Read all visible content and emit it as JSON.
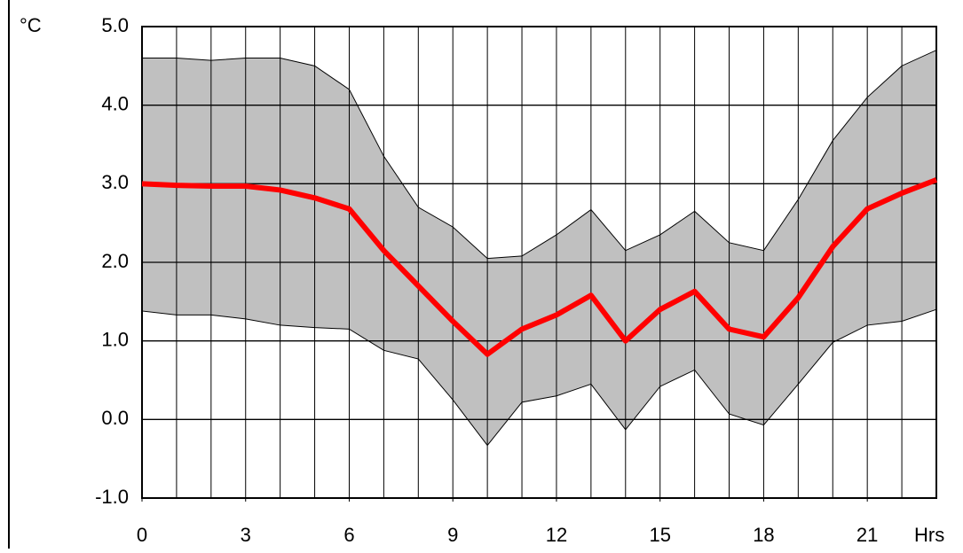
{
  "chart_data": {
    "type": "line",
    "y_label": "°C",
    "x_label": "Hrs",
    "x": [
      0,
      1,
      2,
      3,
      4,
      5,
      6,
      7,
      8,
      9,
      10,
      11,
      12,
      13,
      14,
      15,
      16,
      17,
      18,
      19,
      20,
      21,
      22,
      23
    ],
    "series": [
      {
        "color": "#ff0000",
        "values": [
          3.0,
          2.98,
          2.97,
          2.97,
          2.92,
          2.82,
          2.68,
          2.15,
          1.7,
          1.25,
          0.83,
          1.15,
          1.33,
          1.58,
          1.0,
          1.4,
          1.63,
          1.15,
          1.05,
          1.55,
          2.2,
          2.68,
          2.88,
          3.05
        ]
      }
    ],
    "band": {
      "color": "#c0c0c0",
      "upper": [
        4.6,
        4.6,
        4.57,
        4.6,
        4.6,
        4.5,
        4.2,
        3.35,
        2.7,
        2.45,
        2.05,
        2.08,
        2.35,
        2.67,
        2.15,
        2.35,
        2.65,
        2.25,
        2.15,
        2.8,
        3.55,
        4.1,
        4.5,
        4.7
      ],
      "lower": [
        1.38,
        1.33,
        1.33,
        1.28,
        1.2,
        1.17,
        1.15,
        0.88,
        0.77,
        0.25,
        -0.33,
        0.22,
        0.3,
        0.45,
        -0.13,
        0.42,
        0.63,
        0.07,
        -0.07,
        0.45,
        0.98,
        1.2,
        1.25,
        1.4
      ]
    },
    "xlim": [
      0,
      23
    ],
    "xticks": [
      0,
      3,
      6,
      9,
      12,
      15,
      18,
      21
    ],
    "ylim": [
      -1,
      5
    ],
    "yticks": [
      {
        "value": -1,
        "label": "-1.0"
      },
      {
        "value": 0,
        "label": "0.0"
      },
      {
        "value": 1,
        "label": "1.0"
      },
      {
        "value": 2,
        "label": "2.0"
      },
      {
        "value": 3,
        "label": "3.0"
      },
      {
        "value": 4,
        "label": "4.0"
      },
      {
        "value": 5,
        "label": "5.0"
      }
    ],
    "grid": true
  }
}
